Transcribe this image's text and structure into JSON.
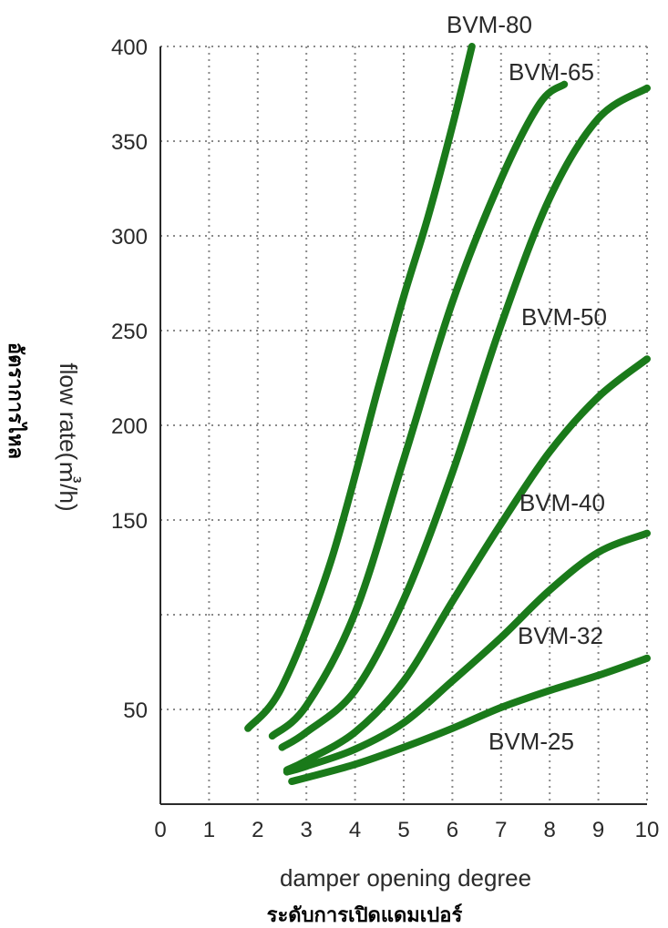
{
  "chart_data": {
    "type": "line",
    "title": "",
    "xlabel": "damper opening degree",
    "xlabel_secondary": "ระดับการเปิดแดมเปอร์",
    "ylabel": "flow rate(㎥/h)",
    "ylabel_secondary": "อัตราการไหล",
    "xlim": [
      0,
      10
    ],
    "ylim": [
      0,
      400
    ],
    "x_ticks": [
      "0",
      "1",
      "2",
      "3",
      "4",
      "5",
      "6",
      "7",
      "8",
      "9",
      "10"
    ],
    "y_ticks": [
      {
        "value": 50,
        "label": "50"
      },
      {
        "value": 100,
        "label": ""
      },
      {
        "value": 150,
        "label": "150"
      },
      {
        "value": 200,
        "label": "200"
      },
      {
        "value": 250,
        "label": "250"
      },
      {
        "value": 300,
        "label": "300"
      },
      {
        "value": 350,
        "label": "350"
      },
      {
        "value": 400,
        "label": "400"
      }
    ],
    "grid": true,
    "line_color": "#1a7a1a",
    "series": [
      {
        "name": "BVM-80",
        "x": [
          1.8,
          2.5,
          3.5,
          4.5,
          5.0,
          5.5,
          6.0,
          6.4
        ],
        "y": [
          40,
          62,
          128,
          222,
          268,
          310,
          358,
          400
        ]
      },
      {
        "name": "BVM-65",
        "x": [
          2.3,
          3.0,
          4.0,
          5.0,
          6.0,
          7.0,
          7.8,
          8.3
        ],
        "y": [
          36,
          52,
          101,
          182,
          265,
          330,
          370,
          380
        ]
      },
      {
        "name": "BVM-50",
        "x": [
          2.5,
          3.0,
          4.0,
          5.0,
          6.0,
          7.0,
          8.0,
          9.0,
          10.0
        ],
        "y": [
          30,
          38,
          60,
          108,
          175,
          253,
          320,
          362,
          378
        ]
      },
      {
        "name": "BVM-40",
        "x": [
          2.6,
          3.0,
          4.0,
          5.0,
          6.0,
          7.0,
          8.0,
          9.0,
          10.0
        ],
        "y": [
          18,
          23,
          38,
          65,
          107,
          148,
          186,
          215,
          235
        ]
      },
      {
        "name": "BVM-32",
        "x": [
          2.6,
          3.0,
          4.0,
          5.0,
          6.0,
          7.0,
          8.0,
          9.0,
          10.0
        ],
        "y": [
          17,
          20,
          29,
          43,
          65,
          88,
          113,
          133,
          143
        ]
      },
      {
        "name": "BVM-25",
        "x": [
          2.7,
          3.0,
          4.0,
          5.0,
          6.0,
          7.0,
          8.0,
          9.0,
          10.0
        ],
        "y": [
          12,
          14,
          21,
          30,
          40,
          51,
          60,
          68,
          77
        ]
      }
    ]
  }
}
